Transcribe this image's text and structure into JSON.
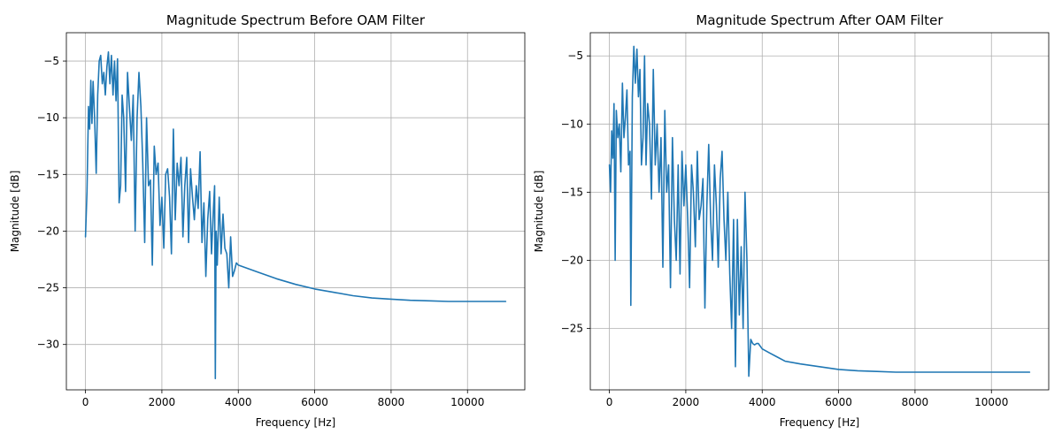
{
  "chart_data": [
    {
      "type": "line",
      "title": "Magnitude Spectrum Before OAM Filter",
      "xlabel": "Frequency [Hz]",
      "ylabel": "Magnitude [dB]",
      "xlim": [
        -500,
        11500
      ],
      "ylim": [
        -34,
        -2.5
      ],
      "xticks": [
        0,
        2000,
        4000,
        6000,
        8000,
        10000
      ],
      "yticks": [
        -30,
        -25,
        -20,
        -15,
        -10,
        -5
      ],
      "grid": true,
      "line_color": "#1f77b4",
      "series": [
        {
          "x": [
            0,
            40,
            80,
            110,
            140,
            170,
            200,
            240,
            280,
            320,
            360,
            400,
            440,
            480,
            520,
            560,
            600,
            640,
            680,
            720,
            760,
            800,
            840,
            880,
            920,
            960,
            1000,
            1050,
            1100,
            1150,
            1200,
            1250,
            1300,
            1350,
            1400,
            1450,
            1500,
            1550,
            1600,
            1650,
            1700,
            1750,
            1800,
            1850,
            1900,
            1950,
            2000,
            2050,
            2100,
            2150,
            2200,
            2250,
            2300,
            2350,
            2400,
            2450,
            2500,
            2550,
            2600,
            2650,
            2700,
            2750,
            2800,
            2850,
            2900,
            2950,
            3000,
            3050,
            3100,
            3150,
            3200,
            3250,
            3300,
            3350,
            3380,
            3400,
            3420,
            3450,
            3500,
            3550,
            3600,
            3650,
            3700,
            3750,
            3800,
            3850,
            3900,
            3950,
            4000,
            4500,
            5000,
            5500,
            6000,
            6500,
            7000,
            7500,
            8000,
            8500,
            9000,
            9500,
            10000,
            10500,
            11000
          ],
          "y": [
            -20.5,
            -16.5,
            -9,
            -11,
            -6.7,
            -10.5,
            -6.8,
            -10,
            -14.9,
            -8,
            -5,
            -4.5,
            -7,
            -6,
            -8,
            -5.5,
            -4.2,
            -7,
            -4.5,
            -8,
            -5,
            -8.5,
            -4.8,
            -17.5,
            -16,
            -8,
            -10,
            -16.5,
            -6,
            -9,
            -12,
            -8,
            -20,
            -10,
            -6,
            -9,
            -14,
            -21,
            -10,
            -16,
            -15.5,
            -23,
            -12.5,
            -15,
            -14,
            -19.5,
            -17,
            -21.5,
            -15,
            -14.5,
            -17,
            -22,
            -11,
            -19,
            -14,
            -16,
            -13.5,
            -20.5,
            -16,
            -13.5,
            -21,
            -14.5,
            -17,
            -19,
            -16,
            -18,
            -13,
            -21,
            -17.5,
            -24,
            -19,
            -16.5,
            -22,
            -18,
            -16,
            -33,
            -20,
            -23,
            -17,
            -22,
            -18.5,
            -21.5,
            -22,
            -25,
            -20.5,
            -24,
            -23.5,
            -22.8,
            -23,
            -23.6,
            -24.2,
            -24.7,
            -25.1,
            -25.4,
            -25.7,
            -25.9,
            -26.0,
            -26.1,
            -26.15,
            -26.2,
            -26.2,
            -26.2,
            -26.2
          ]
        }
      ]
    },
    {
      "type": "line",
      "title": "Magnitude Spectrum After OAM Filter",
      "xlabel": "Frequency [Hz]",
      "ylabel": "Magnitude [dB]",
      "xlim": [
        -500,
        11500
      ],
      "ylim": [
        -29.5,
        -3.3
      ],
      "xticks": [
        0,
        2000,
        4000,
        6000,
        8000,
        10000
      ],
      "yticks": [
        -25,
        -20,
        -15,
        -10,
        -5
      ],
      "grid": true,
      "line_color": "#1f77b4",
      "series": [
        {
          "x": [
            0,
            30,
            60,
            90,
            120,
            150,
            180,
            220,
            260,
            300,
            340,
            380,
            420,
            460,
            500,
            540,
            560,
            600,
            640,
            680,
            720,
            760,
            800,
            840,
            880,
            920,
            960,
            1000,
            1050,
            1100,
            1150,
            1200,
            1250,
            1300,
            1350,
            1400,
            1450,
            1500,
            1550,
            1600,
            1650,
            1700,
            1750,
            1800,
            1850,
            1900,
            1950,
            2000,
            2050,
            2100,
            2150,
            2200,
            2250,
            2300,
            2350,
            2400,
            2450,
            2500,
            2550,
            2600,
            2650,
            2700,
            2750,
            2800,
            2850,
            2900,
            2950,
            3000,
            3050,
            3100,
            3150,
            3200,
            3250,
            3300,
            3350,
            3400,
            3450,
            3500,
            3550,
            3600,
            3650,
            3700,
            3750,
            3800,
            3850,
            3900,
            3950,
            4000,
            4200,
            4400,
            4600,
            5000,
            5500,
            6000,
            6500,
            7000,
            7500,
            8000,
            8500,
            9000,
            9500,
            10000,
            10500,
            11000
          ],
          "y": [
            -13,
            -15,
            -10.5,
            -12.5,
            -8.5,
            -20,
            -9,
            -11,
            -10,
            -13.5,
            -7,
            -11,
            -9.5,
            -7.5,
            -13,
            -12,
            -23.3,
            -8,
            -4.3,
            -7,
            -4.5,
            -8,
            -6,
            -13,
            -11,
            -5,
            -13,
            -8.5,
            -10,
            -15.5,
            -6,
            -13,
            -10,
            -15,
            -11,
            -20.5,
            -9,
            -15,
            -13,
            -22,
            -11,
            -17,
            -20,
            -13,
            -21,
            -12,
            -16,
            -13,
            -17,
            -22,
            -13,
            -15,
            -19,
            -12,
            -17,
            -16,
            -14,
            -23.5,
            -16,
            -11.5,
            -17,
            -20,
            -13,
            -16,
            -20.5,
            -14,
            -12,
            -17,
            -20,
            -15,
            -21,
            -25,
            -17,
            -27.8,
            -17,
            -24,
            -19,
            -25,
            -15,
            -20,
            -28.5,
            -25.8,
            -26.1,
            -26.2,
            -26.1,
            -26.1,
            -26.3,
            -26.5,
            -26.8,
            -27.1,
            -27.4,
            -27.6,
            -27.8,
            -28.0,
            -28.1,
            -28.15,
            -28.2,
            -28.2,
            -28.2,
            -28.2,
            -28.2,
            -28.2,
            -28.2,
            -28.2
          ]
        }
      ]
    }
  ]
}
